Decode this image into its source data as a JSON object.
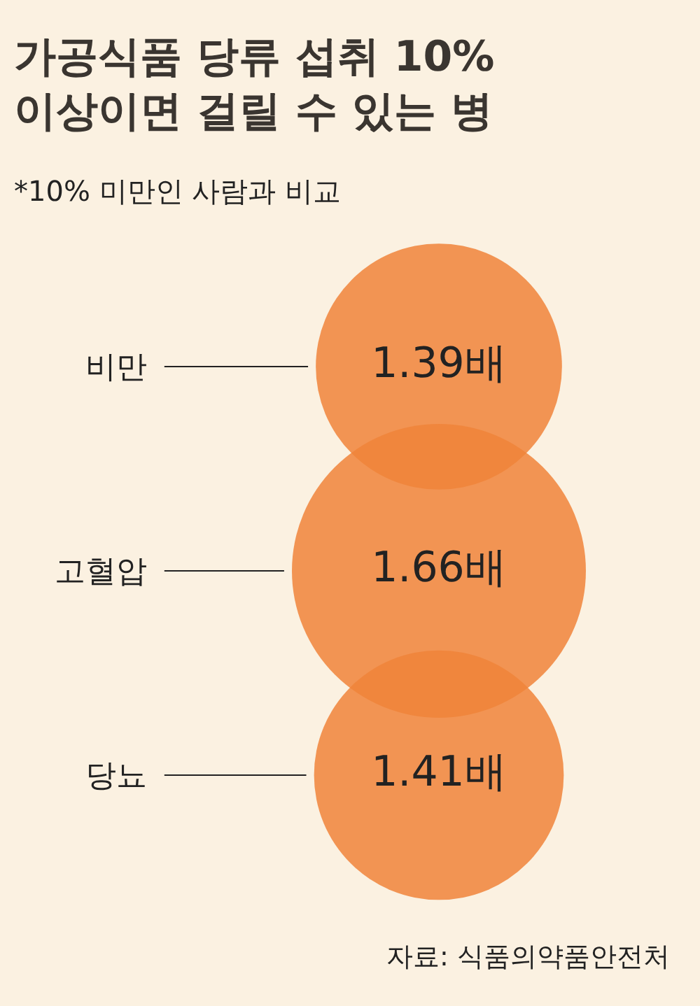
{
  "chart_data": {
    "type": "other",
    "title": "가공식품 당류 섭취 10%\n이상이면 걸릴 수 있는 병",
    "subtitle": "*10% 미만인 사람과 비교",
    "categories": [
      "비만",
      "고혈압",
      "당뇨"
    ],
    "values": [
      1.39,
      1.66,
      1.41
    ],
    "value_labels": [
      "1.39배",
      "1.66배",
      "1.41배"
    ],
    "color": "#f0843a",
    "annotations": [
      "자료: 식품의약품안전처"
    ]
  }
}
